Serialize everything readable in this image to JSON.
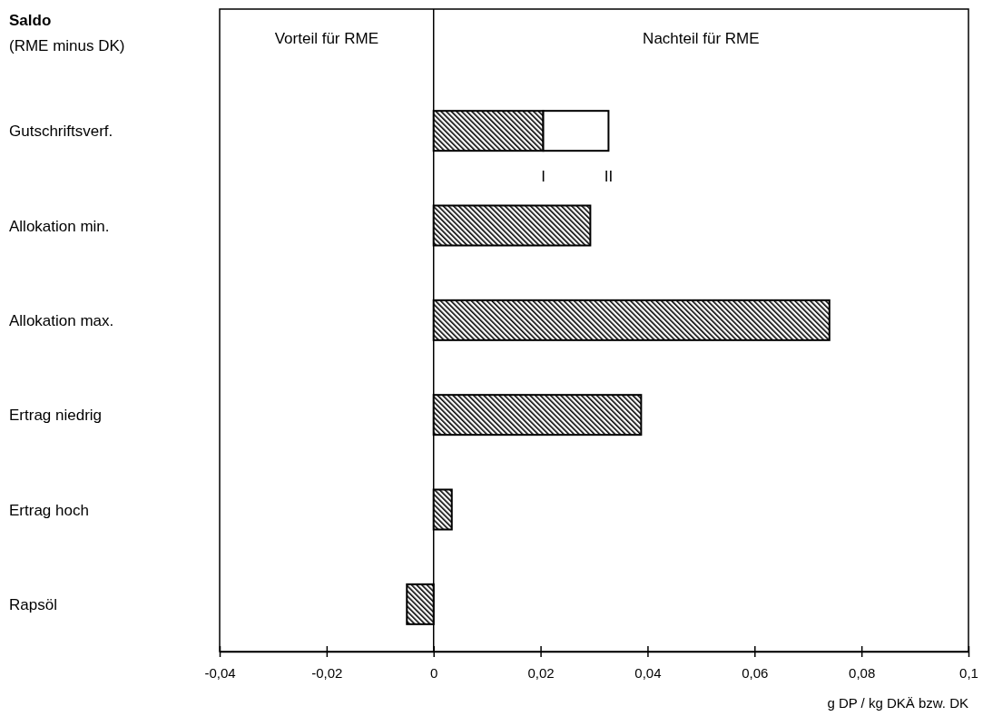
{
  "chart_data": {
    "type": "bar",
    "orientation": "horizontal",
    "stacked": true,
    "title": "Saldo",
    "subtitle": "(RME minus DK)",
    "xlabel": "g DP / kg DKÄ bzw. DK",
    "categories": [
      "Gutschriftsverf.",
      "Allokation min.",
      "Allokation max.",
      "Ertrag niedrig",
      "Ertrag hoch",
      "Rapsöl"
    ],
    "series": [
      {
        "color": "#000000",
        "values": [
          0.0205,
          0.0293,
          0.074,
          0.0388,
          0.0034,
          -0.005
        ]
      },
      {
        "color": "#ffffff",
        "values": [
          0.0122,
          null,
          null,
          null,
          null,
          null
        ]
      }
    ],
    "xlim": [
      -0.04,
      0.1
    ],
    "xticks": [
      {
        "value": -0.04,
        "label": "-0,04"
      },
      {
        "value": -0.02,
        "label": "-0,02"
      },
      {
        "value": 0,
        "label": "0"
      },
      {
        "value": 0.02,
        "label": "0,02"
      },
      {
        "value": 0.04,
        "label": "0,04"
      },
      {
        "value": 0.06,
        "label": "0,06"
      },
      {
        "value": 0.08,
        "label": "0,08"
      },
      {
        "value": 0.1,
        "label": "0,1"
      }
    ],
    "annotations": [
      "Vorteil für RME",
      "Nachteil für RME",
      {
        "text": "I",
        "x": 0.0205,
        "y": "Gutschriftsverf."
      },
      {
        "text": "II",
        "x": 0.0327,
        "y": "Gutschriftsverf."
      }
    ]
  }
}
